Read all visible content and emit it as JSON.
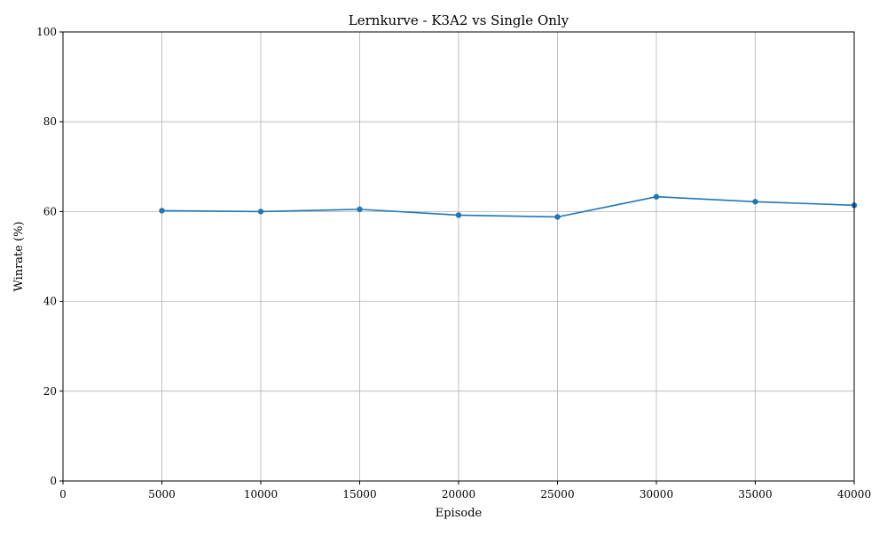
{
  "chart_data": {
    "type": "line",
    "title": "Lernkurve - K3A2 vs Single Only",
    "xlabel": "Episode",
    "ylabel": "Winrate (%)",
    "xlim": [
      0,
      40000
    ],
    "ylim": [
      0,
      100
    ],
    "xticks": [
      0,
      5000,
      10000,
      15000,
      20000,
      25000,
      30000,
      35000,
      40000
    ],
    "yticks": [
      0,
      20,
      40,
      60,
      80,
      100
    ],
    "grid": true,
    "series": [
      {
        "color": "#1f77b4",
        "marker": "circle",
        "x": [
          5000,
          10000,
          15000,
          20000,
          25000,
          30000,
          35000,
          40000
        ],
        "y": [
          60.2,
          60.0,
          60.5,
          59.2,
          58.8,
          63.3,
          62.2,
          61.4
        ]
      }
    ]
  }
}
